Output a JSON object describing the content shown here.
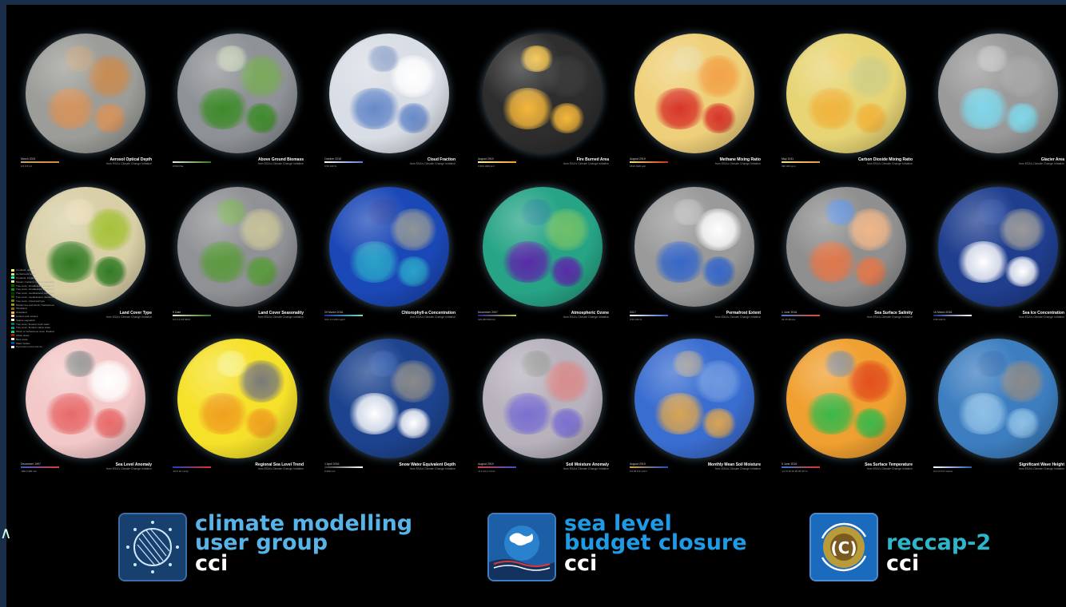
{
  "globes": [
    {
      "label": "Aerosol Optical Depth",
      "sub": "from ESA's Climate Change Initiative",
      "date": "March 2021",
      "ticks": "0.0   0.5   1.0",
      "scale": [
        "#c9a37a",
        "#d98a34"
      ],
      "colors": {
        "base": "#9c9c98",
        "b1": "#d6935b",
        "b2": "#c98c52",
        "b3": "#b9a07f"
      }
    },
    {
      "label": "Above Ground Biomass",
      "sub": "from ESA's Climate Change Initiative",
      "date": "",
      "ticks": "0      500 t/ha",
      "scale": [
        "#e8f0d8",
        "#2f7a1d"
      ],
      "colors": {
        "base": "#8e9195",
        "b1": "#3e8b2a",
        "b2": "#7aaa5a",
        "b3": "#bfcab3"
      }
    },
    {
      "label": "Cloud Fraction",
      "sub": "from ESA's Climate Change Initiative",
      "date": "October 2010",
      "ticks": "0    50   100 %",
      "scale": [
        "#ffffff",
        "#5b7fcf"
      ],
      "colors": {
        "base": "#d9dde5",
        "b1": "#6789c9",
        "b2": "#ffffff",
        "b3": "#8fa2c8"
      }
    },
    {
      "label": "Fire Burned Area",
      "sub": "from ESA's Climate Change Initiative",
      "date": "August 2019",
      "ticks": "0    500   1000 km²",
      "scale": [
        "#fff2a8",
        "#f0a020"
      ],
      "colors": {
        "base": "#2d2d2d",
        "b1": "#f5b73a",
        "b2": "#3b3b3b",
        "b3": "#f2c040"
      }
    },
    {
      "label": "Methane Mixing Ratio",
      "sub": "from ESA's Climate Change Initiative",
      "date": "August 2019",
      "ticks": "1810     1920 ppb",
      "scale": [
        "#f7e27a",
        "#d32a1a"
      ],
      "colors": {
        "base": "#efd07a",
        "b1": "#d8342a",
        "b2": "#f2a348",
        "b3": "#e9d896"
      }
    },
    {
      "label": "Carbon Dioxide Mixing Ratio",
      "sub": "from ESA's Climate Change Initiative",
      "date": "May 2011",
      "ticks": "390       400 ppm",
      "scale": [
        "#f6e58f",
        "#ea9a30"
      ],
      "colors": {
        "base": "#e7d575",
        "b1": "#f0b43d",
        "b2": "#cfcf86",
        "b3": "#eed06a"
      }
    },
    {
      "label": "Glacier Area",
      "sub": "from ESA's Climate Change Initiative",
      "date": "",
      "ticks": "",
      "scale": [
        "#ffffff",
        "#8fe3ef"
      ],
      "colors": {
        "base": "#9a9a9a",
        "b1": "#7fd7ea",
        "b2": "#a8a8a8",
        "b3": "#bcbcbc"
      }
    },
    {
      "label": "Land Cover Type",
      "sub": "from ESA's Climate Change Initiative",
      "date": "",
      "ticks": "",
      "scale": [
        "#ffffff",
        "#ffffff"
      ],
      "colors": {
        "base": "#d8cfa6",
        "b1": "#2f7a22",
        "b2": "#a6c23a",
        "b3": "#e7d9b3"
      }
    },
    {
      "label": "Land Cover Seasonality",
      "sub": "from ESA's Climate Change Initiative",
      "date": "9 Date",
      "ticks": "0.0    0.4    0.8 NDVI",
      "scale": [
        "#e8e2c4",
        "#2d7a21"
      ],
      "colors": {
        "base": "#8f9194",
        "b1": "#5a9a3c",
        "b2": "#c9c39a",
        "b3": "#7aa858"
      }
    },
    {
      "label": "Chlorophyll-a Concentration",
      "sub": "from ESA's Climate Change Initiative",
      "date": "29 March 2016",
      "ticks": "0.01     1.0     100 mg/m³",
      "scale": [
        "#1a2fa0",
        "#7ae0b8"
      ],
      "colors": {
        "base": "#1b48b7",
        "b1": "#2aa2c8",
        "b2": "#8f9598",
        "b3": "#1f3ea6"
      }
    },
    {
      "label": "Atmospheric Ozone",
      "sub": "from ESA's Climate Change Initiative",
      "date": "November 2007",
      "ticks": "100    250    500 DU",
      "scale": [
        "#3a1a90",
        "#aad24a"
      ],
      "colors": {
        "base": "#27a486",
        "b1": "#5a2aa8",
        "b2": "#70c06a",
        "b3": "#1f8b91"
      }
    },
    {
      "label": "Permafrost Extent",
      "sub": "from ESA's Climate Change Initiative",
      "date": "2017",
      "ticks": "0     50    100 %",
      "scale": [
        "#ffffff",
        "#2f62c7"
      ],
      "colors": {
        "base": "#9a9a9a",
        "b1": "#3667c9",
        "b2": "#ffffff",
        "b3": "#b7b7b7"
      }
    },
    {
      "label": "Sea Surface Salinity",
      "sub": "from ESA's Climate Change Initiative",
      "date": "1 June 2016",
      "ticks": "32    35    38 psu",
      "scale": [
        "#4a7ad2",
        "#e24a24"
      ],
      "colors": {
        "base": "#8f8f8f",
        "b1": "#e2774a",
        "b2": "#f0b78a",
        "b3": "#5e8ed8"
      }
    },
    {
      "label": "Sea Ice Concentration",
      "sub": "from ESA's Climate Change Initiative",
      "date": "16 March 2016",
      "ticks": "0     50    100 %",
      "scale": [
        "#17307e",
        "#ffffff"
      ],
      "colors": {
        "base": "#1f3e8e",
        "b1": "#ffffff",
        "b2": "#9a9a9a",
        "b3": "#2a4ca0"
      }
    },
    {
      "label": "Sea Level Anomaly",
      "sub": "from ESA's Climate Change Initiative",
      "date": "December 1997",
      "ticks": "-300     0     300 mm",
      "scale": [
        "#3a57c8",
        "#e03a3a"
      ],
      "colors": {
        "base": "#f3c8c8",
        "b1": "#e86a6a",
        "b2": "#ffffff",
        "b3": "#8b8b8b"
      }
    },
    {
      "label": "Regional Sea Level Trend",
      "sub": "from ESA's Climate Change Initiative",
      "date": "",
      "ticks": "-10     0     10 mm/yr",
      "scale": [
        "#2340c0",
        "#e83020"
      ],
      "colors": {
        "base": "#f6e12a",
        "b1": "#f0a020",
        "b2": "#7a7a7a",
        "b3": "#f7f07a"
      }
    },
    {
      "label": "Snow Water Equivalent Depth",
      "sub": "from ESA's Climate Change Initiative",
      "date": "1 April 2016",
      "ticks": "0          200 mm",
      "scale": [
        "#303030",
        "#ffffff"
      ],
      "colors": {
        "base": "#1d438e",
        "b1": "#ffffff",
        "b2": "#8a8a8a",
        "b3": "#2a56a8"
      }
    },
    {
      "label": "Soil Moisture Anomaly",
      "sub": "from ESA's Climate Change Initiative",
      "date": "August 2019",
      "ticks": "-0.1   0   0.1 m³/m³",
      "scale": [
        "#d44040",
        "#3a50c8"
      ],
      "colors": {
        "base": "#b8b2bd",
        "b1": "#7a6fd0",
        "b2": "#d98c8c",
        "b3": "#9a9a9a"
      }
    },
    {
      "label": "Monthly Mean Soil Moisture",
      "sub": "from ESA's Climate Change Initiative",
      "date": "August 2019",
      "ticks": "0    0.25    0.5 m³/m³",
      "scale": [
        "#d9a040",
        "#1f4fc7"
      ],
      "colors": {
        "base": "#3a6dd0",
        "b1": "#d9a454",
        "b2": "#6f9ae0",
        "b3": "#9a9a9a"
      }
    },
    {
      "label": "Sea Surface Temperature",
      "sub": "from ESA's Climate Change Initiative",
      "date": "5 June 2016",
      "ticks": "-2  0  5  10  15  20  25  30 °C",
      "scale": [
        "#2a7ad8",
        "#e83020"
      ],
      "colors": {
        "base": "#f0a030",
        "b1": "#3ab84a",
        "b2": "#e2501e",
        "b3": "#8a8a8a"
      }
    },
    {
      "label": "Significant Wave Height",
      "sub": "from ESA's Climate Change Initiative",
      "date": "",
      "ticks": "0.0    2.5    5.0 metres",
      "scale": [
        "#ffffff",
        "#2a5ab0"
      ],
      "colors": {
        "base": "#3d7ec0",
        "b1": "#8fc0e6",
        "b2": "#8a8a8a",
        "b3": "#2e6bb2"
      }
    }
  ],
  "land_cover_legend": [
    {
      "name": "Cropland, rainfed",
      "color": "#ffff64"
    },
    {
      "name": "Herbaceous cover",
      "color": "#c8f064"
    },
    {
      "name": "Cropland, irrigated",
      "color": "#00ffff"
    },
    {
      "name": "Mosaic cropland / natural vegetation",
      "color": "#dcf064"
    },
    {
      "name": "Tree cover, broadleaved, evergreen",
      "color": "#006400"
    },
    {
      "name": "Tree cover, broadleaved, deciduous",
      "color": "#00a000"
    },
    {
      "name": "Tree cover, needleleaved, evergreen",
      "color": "#003c00"
    },
    {
      "name": "Tree cover, needleleaved, deciduous",
      "color": "#285000"
    },
    {
      "name": "Tree cover, mixed leaf type",
      "color": "#788200"
    },
    {
      "name": "Mosaic tree and shrub / herbaceous",
      "color": "#8ca000"
    },
    {
      "name": "Shrubland",
      "color": "#966400"
    },
    {
      "name": "Grassland",
      "color": "#ffb432"
    },
    {
      "name": "Lichens and mosses",
      "color": "#ffdcd2"
    },
    {
      "name": "Sparse vegetation",
      "color": "#ffebaf"
    },
    {
      "name": "Tree cover, flooded, fresh water",
      "color": "#00785a"
    },
    {
      "name": "Tree cover, flooded, saline water",
      "color": "#009678"
    },
    {
      "name": "Shrub or herbaceous cover, flooded",
      "color": "#00dc82"
    },
    {
      "name": "Urban areas",
      "color": "#c31400"
    },
    {
      "name": "Bare areas",
      "color": "#fff5d7"
    },
    {
      "name": "Water bodies",
      "color": "#0046c8"
    },
    {
      "name": "Permanent snow and ice",
      "color": "#ffffff"
    }
  ],
  "logos": [
    {
      "lines": [
        "climate modelling",
        "user group"
      ],
      "cci": "cci",
      "color": "#58b4e8",
      "icon": "cmug-icon"
    },
    {
      "lines": [
        "sea level",
        "budget closure"
      ],
      "cci": "cci",
      "color": "#1f9be6",
      "icon": "sea-level-icon"
    },
    {
      "lines": [
        "reccap-2"
      ],
      "cci": "cci",
      "color": "#2fb5c9",
      "icon": "reccap-icon"
    }
  ]
}
